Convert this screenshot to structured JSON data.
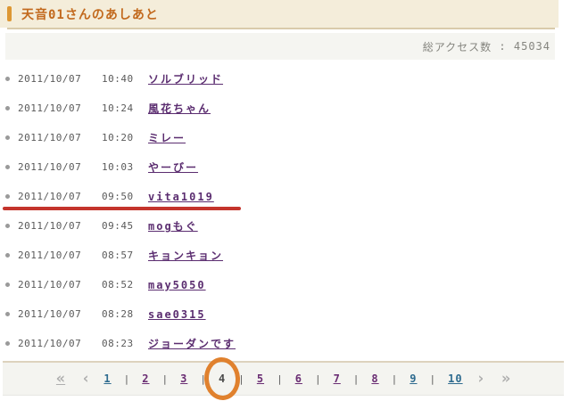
{
  "header": {
    "title": "天音01さんのあしあと"
  },
  "stats": {
    "label": "総アクセス数",
    "separator": " : ",
    "value": "45034"
  },
  "entries": [
    {
      "date": "2011/10/07",
      "time": "10:40",
      "name": "ソルブリッド",
      "highlight": false
    },
    {
      "date": "2011/10/07",
      "time": "10:24",
      "name": "風花ちゃん",
      "highlight": false
    },
    {
      "date": "2011/10/07",
      "time": "10:20",
      "name": "ミレー",
      "highlight": false
    },
    {
      "date": "2011/10/07",
      "time": "10:03",
      "name": "やーびー",
      "highlight": false
    },
    {
      "date": "2011/10/07",
      "time": "09:50",
      "name": "vita1019",
      "highlight": true
    },
    {
      "date": "2011/10/07",
      "time": "09:45",
      "name": "mogもぐ",
      "highlight": false
    },
    {
      "date": "2011/10/07",
      "time": "08:57",
      "name": "キョンキョン",
      "highlight": false
    },
    {
      "date": "2011/10/07",
      "time": "08:52",
      "name": "may5050",
      "highlight": false
    },
    {
      "date": "2011/10/07",
      "time": "08:28",
      "name": "sae0315",
      "highlight": false
    },
    {
      "date": "2011/10/07",
      "time": "08:23",
      "name": "ジョーダンです",
      "highlight": false
    }
  ],
  "pagination": {
    "first_label": "«",
    "prev_label": "‹",
    "next_label": "›",
    "last_label": "»",
    "separator": "|",
    "current_page": "4",
    "pages": [
      {
        "label": "1",
        "state": "blue",
        "annotated": false
      },
      {
        "label": "2",
        "state": "purple",
        "annotated": false
      },
      {
        "label": "3",
        "state": "purple",
        "annotated": false
      },
      {
        "label": "4",
        "state": "current",
        "annotated": true
      },
      {
        "label": "5",
        "state": "purple",
        "annotated": false
      },
      {
        "label": "6",
        "state": "purple",
        "annotated": false
      },
      {
        "label": "7",
        "state": "purple",
        "annotated": false
      },
      {
        "label": "8",
        "state": "purple",
        "annotated": false
      },
      {
        "label": "9",
        "state": "blue",
        "annotated": false
      },
      {
        "label": "10",
        "state": "blue",
        "annotated": false
      }
    ]
  },
  "colors": {
    "accent_orange": "#dd9733",
    "title_text": "#c2691d",
    "header_band": "#f4edda",
    "link_purple": "#5b2d70",
    "pager_blue": "#2e6b8f",
    "pager_purple": "#6a2d73",
    "annotation_red_line": "#c4342c",
    "annotation_orange_circle": "#e0812e"
  }
}
